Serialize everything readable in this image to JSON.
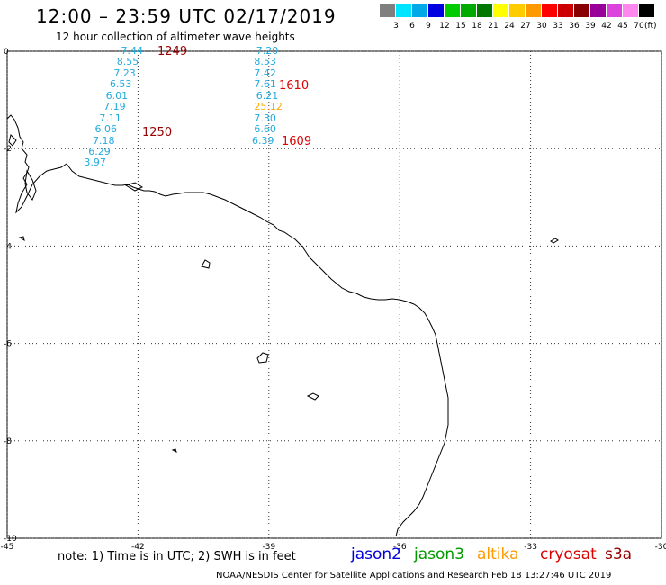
{
  "title": "12:00 – 23:59 UTC 02/17/2019",
  "subtitle": "12 hour collection of altimeter wave heights",
  "legend": {
    "colors": [
      "#7f7f7f",
      "#00e5ff",
      "#00a8e8",
      "#0000e0",
      "#00cc00",
      "#00aa00",
      "#007700",
      "#ffff00",
      "#ffcc00",
      "#ff9900",
      "#ff0000",
      "#cc0000",
      "#880000",
      "#990099",
      "#dd44dd",
      "#ff88ee",
      "#000000"
    ],
    "labels": [
      "3",
      "6",
      "9",
      "12",
      "15",
      "18",
      "21",
      "24",
      "27",
      "30",
      "33",
      "36",
      "39",
      "42",
      "45",
      "70"
    ],
    "unit": "(ft)"
  },
  "axes": {
    "y_ticks": [
      "0",
      "-2",
      "-4",
      "-6",
      "-8",
      "-10"
    ],
    "x_ticks": [
      "-45",
      "-42",
      "-39",
      "-36",
      "-33",
      "-30"
    ],
    "lon_range": [
      -45,
      -30
    ],
    "lat_range": [
      -10,
      0
    ],
    "grid": "dotted"
  },
  "tracks": [
    {
      "time": "1249",
      "time_color": "#990000",
      "values": [
        {
          "v": "7.44",
          "lon": -42.1,
          "lat": 0.0
        },
        {
          "v": "8.55",
          "lon": -42.2,
          "lat": -0.23
        },
        {
          "v": "7.23",
          "lon": -42.27,
          "lat": -0.46
        },
        {
          "v": "6.53",
          "lon": -42.36,
          "lat": -0.69
        },
        {
          "v": "6.01",
          "lon": -42.45,
          "lat": -0.92
        },
        {
          "v": "7.19",
          "lon": -42.5,
          "lat": -1.15
        },
        {
          "v": "7.11",
          "lon": -42.6,
          "lat": -1.38
        },
        {
          "v": "6.06",
          "lon": -42.7,
          "lat": -1.61
        },
        {
          "v": "7.18",
          "lon": -42.75,
          "lat": -1.84
        },
        {
          "v": "6.29",
          "lon": -42.85,
          "lat": -2.07
        },
        {
          "v": "3.97",
          "lon": -42.95,
          "lat": -2.3
        }
      ]
    },
    {
      "time": "1610",
      "time_color": "#dd0000",
      "values": [
        {
          "v": "7.20",
          "lon": -39.0,
          "lat": 0.0
        },
        {
          "v": "8.53",
          "lon": -39.05,
          "lat": -0.23
        },
        {
          "v": "7.42",
          "lon": -39.05,
          "lat": -0.46
        },
        {
          "v": "7.61",
          "lon": -39.05,
          "lat": -0.69
        },
        {
          "v": "6.21",
          "lon": -39.0,
          "lat": -0.92
        },
        {
          "v": "25.12",
          "lon": -39.05,
          "lat": -1.15,
          "color": "#ffaa00"
        },
        {
          "v": "7.30",
          "lon": -39.05,
          "lat": -1.38
        },
        {
          "v": "6.60",
          "lon": -39.05,
          "lat": -1.61
        },
        {
          "v": "6.39",
          "lon": -39.1,
          "lat": -1.84
        }
      ]
    }
  ],
  "time_tags": [
    {
      "text": "1249",
      "color": "#990000"
    },
    {
      "text": "1610",
      "color": "#dd0000"
    },
    {
      "text": "1250",
      "color": "#990000"
    },
    {
      "text": "1609",
      "color": "#dd0000"
    }
  ],
  "note": "note:  1) Time is in UTC;  2) SWH is in feet",
  "satellites": [
    {
      "name": "jason2",
      "color": "#0000dd"
    },
    {
      "name": "jason3",
      "color": "#009900"
    },
    {
      "name": "altika",
      "color": "#ff9900"
    },
    {
      "name": "cryosat",
      "color": "#dd0000"
    },
    {
      "name": "s3a",
      "color": "#990000"
    }
  ],
  "credit": "NOAA/NESDIS Center for Satellite Applications and Research    Feb 18 13:27:46 UTC 2019"
}
